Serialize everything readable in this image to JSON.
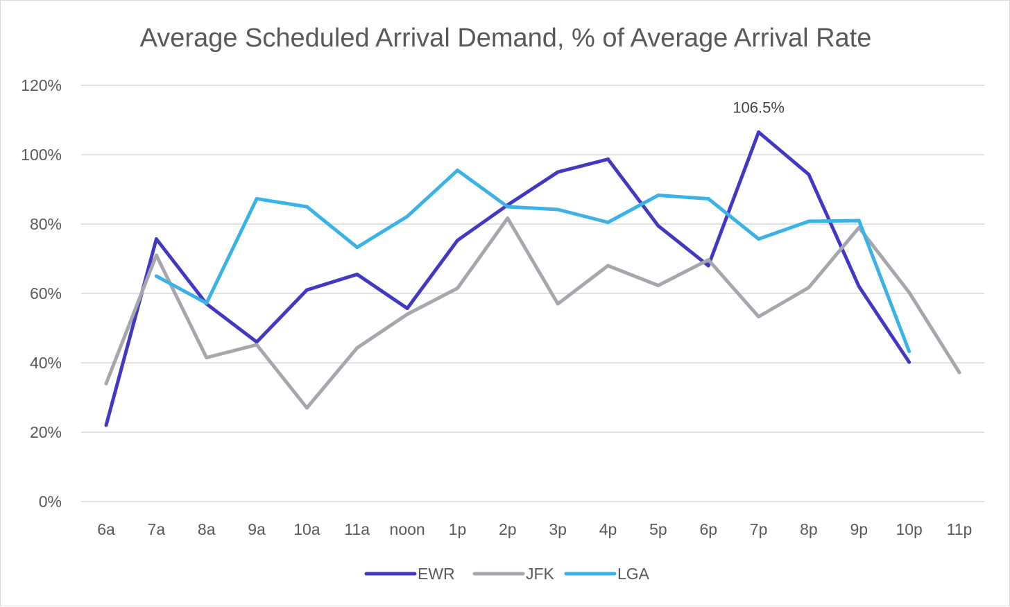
{
  "chart_data": {
    "type": "line",
    "title": "Average Scheduled Arrival Demand, % of Average Arrival Rate",
    "xlabel": "",
    "ylabel": "",
    "ylim": [
      0,
      120
    ],
    "y_ticks": [
      0,
      20,
      40,
      60,
      80,
      100,
      120
    ],
    "y_tick_labels": [
      "0%",
      "20%",
      "40%",
      "60%",
      "80%",
      "100%",
      "120%"
    ],
    "grid": true,
    "legend_position": "bottom",
    "categories": [
      "6a",
      "7a",
      "8a",
      "9a",
      "10a",
      "11a",
      "noon",
      "1p",
      "2p",
      "3p",
      "4p",
      "5p",
      "6p",
      "7p",
      "8p",
      "9p",
      "10p",
      "11p"
    ],
    "series": [
      {
        "name": "EWR",
        "color": "#4338c2",
        "values": [
          22,
          75.7,
          57,
          46,
          61,
          65.5,
          55.7,
          75.3,
          85.5,
          95,
          98.7,
          79.5,
          68,
          106.5,
          94.3,
          62,
          40.2,
          null
        ]
      },
      {
        "name": "JFK",
        "color": "#a5a7ad",
        "values": [
          34,
          71,
          41.5,
          45.2,
          27,
          44.3,
          54,
          61.5,
          81.7,
          57,
          68,
          62.3,
          69.7,
          53.3,
          61.7,
          79,
          60.3,
          37.2
        ]
      },
      {
        "name": "LGA",
        "color": "#3bb2e6",
        "values": [
          null,
          65,
          57.2,
          87.3,
          85,
          73.3,
          82.2,
          95.5,
          85,
          84.2,
          80.5,
          88.3,
          87.3,
          75.7,
          80.8,
          81,
          43.3,
          null
        ]
      }
    ],
    "annotations": [
      {
        "text": "106.5%",
        "series": "EWR",
        "category": "7p"
      }
    ]
  }
}
